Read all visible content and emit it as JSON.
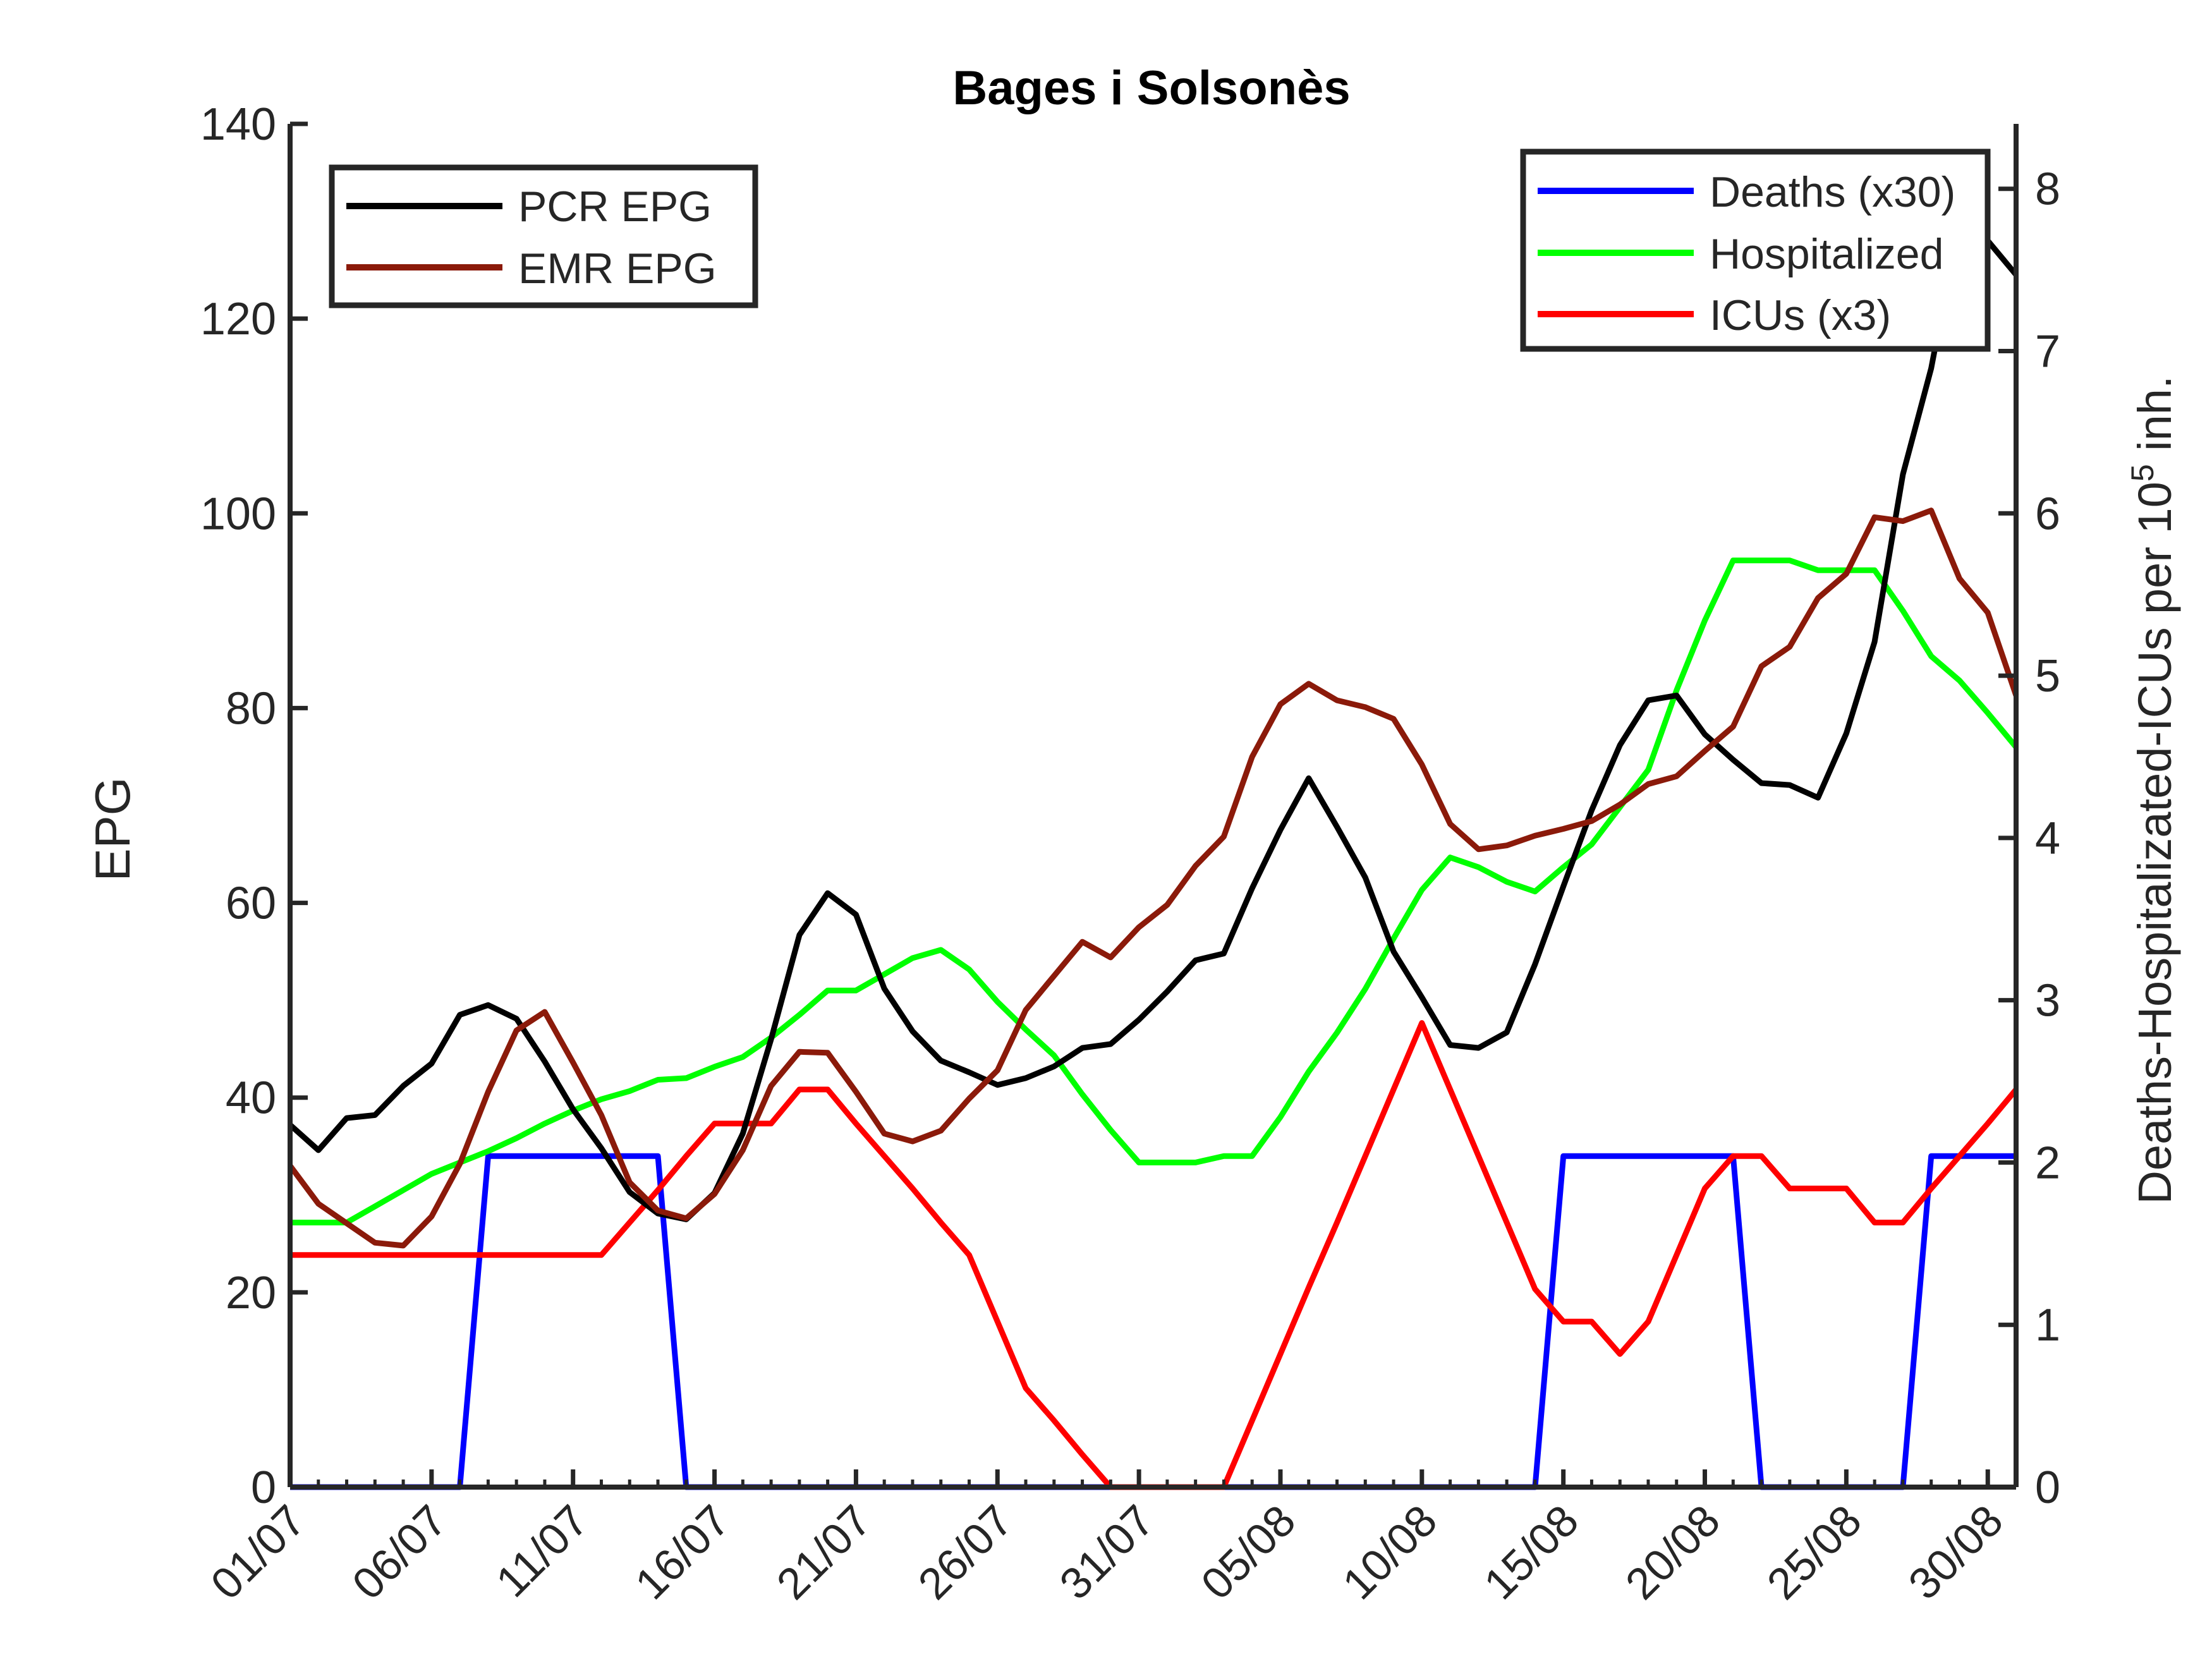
{
  "chart_data": {
    "type": "line",
    "title": "Bages i Solsonès",
    "x": [
      "01/07",
      "02/07",
      "03/07",
      "04/07",
      "05/07",
      "06/07",
      "07/07",
      "08/07",
      "09/07",
      "10/07",
      "11/07",
      "12/07",
      "13/07",
      "14/07",
      "15/07",
      "16/07",
      "17/07",
      "18/07",
      "19/07",
      "20/07",
      "21/07",
      "22/07",
      "23/07",
      "24/07",
      "25/07",
      "26/07",
      "27/07",
      "28/07",
      "29/07",
      "30/07",
      "31/07",
      "01/08",
      "02/08",
      "03/08",
      "04/08",
      "05/08",
      "06/08",
      "07/08",
      "08/08",
      "09/08",
      "10/08",
      "11/08",
      "12/08",
      "13/08",
      "14/08",
      "15/08",
      "16/08",
      "17/08",
      "18/08",
      "19/08",
      "20/08",
      "21/08",
      "22/08",
      "23/08",
      "24/08",
      "25/08",
      "26/08",
      "27/08",
      "28/08",
      "29/08",
      "30/08",
      "31/08"
    ],
    "xticks": [
      "01/07",
      "06/07",
      "11/07",
      "16/07",
      "21/07",
      "26/07",
      "31/07",
      "05/08",
      "10/08",
      "15/08",
      "20/08",
      "25/08",
      "30/08"
    ],
    "ylabel_left": "EPG",
    "ylabel_right_prefix": "Deaths-Hospitalizated-ICUs per 10",
    "ylabel_right_sup": "5",
    "ylabel_right_suffix": " inh.",
    "ylim_left": [
      0,
      140
    ],
    "yticks_left": [
      0,
      20,
      40,
      60,
      80,
      100,
      120,
      140
    ],
    "ylim_right": [
      0,
      8.4
    ],
    "yticks_right": [
      0,
      1,
      2,
      3,
      4,
      5,
      6,
      7,
      8
    ],
    "legend_left": [
      "PCR EPG",
      "EMR EPG"
    ],
    "legend_right": [
      "Deaths (x30)",
      "Hospitalized",
      "ICUs (x3)"
    ],
    "series_left": [
      {
        "name": "PCR EPG",
        "color": "#000000",
        "values": [
          37.2,
          34.6,
          37.9,
          38.2,
          41.2,
          43.5,
          48.5,
          49.5,
          48.1,
          43.7,
          38.8,
          34.8,
          30.3,
          28.1,
          27.5,
          30.2,
          36.3,
          46.0,
          56.7,
          61.0,
          58.8,
          51.2,
          46.8,
          43.8,
          42.6,
          41.3,
          42.0,
          43.2,
          45.1,
          45.5,
          48.0,
          50.9,
          54.1,
          54.8,
          61.5,
          67.5,
          72.8,
          67.8,
          62.6,
          55.0,
          50.3,
          45.4,
          45.1,
          46.7,
          53.7,
          61.7,
          69.5,
          76.2,
          80.8,
          81.3,
          77.3,
          74.7,
          72.3,
          72.1,
          70.8,
          77.4,
          86.8,
          104.0,
          114.9,
          130.1,
          128.0,
          124.5
        ]
      },
      {
        "name": "EMR EPG",
        "color": "#8B1A0A",
        "values": [
          33.0,
          29.1,
          27.1,
          25.1,
          24.8,
          27.8,
          33.2,
          40.6,
          46.9,
          48.8,
          43.6,
          38.2,
          31.3,
          28.4,
          27.6,
          30.1,
          34.6,
          41.2,
          44.7,
          44.6,
          40.6,
          36.3,
          35.5,
          36.6,
          39.9,
          42.8,
          49.0,
          52.5,
          56.0,
          54.4,
          57.5,
          59.8,
          63.8,
          66.8,
          75.0,
          80.4,
          82.5,
          80.8,
          80.1,
          78.9,
          74.2,
          68.1,
          65.5,
          65.9,
          66.9,
          67.6,
          68.4,
          70.1,
          72.2,
          73.0,
          75.6,
          78.1,
          84.3,
          86.3,
          91.3,
          93.8,
          99.6,
          99.2,
          100.3,
          93.3,
          89.8,
          81.3
        ]
      }
    ],
    "series_right": [
      {
        "name": "Deaths (x30)",
        "color": "#0000FF",
        "values": [
          0,
          0,
          0,
          0,
          0,
          0,
          0,
          2.04,
          2.04,
          2.04,
          2.04,
          2.04,
          2.04,
          2.04,
          0,
          0,
          0,
          0,
          0,
          0,
          0,
          0,
          0,
          0,
          0,
          0,
          0,
          0,
          0,
          0,
          0,
          0,
          0,
          0,
          0,
          0,
          0,
          0,
          0,
          0,
          0,
          0,
          0,
          0,
          0,
          2.04,
          2.04,
          2.04,
          2.04,
          2.04,
          2.04,
          2.04,
          0,
          0,
          0,
          0,
          0,
          0,
          2.04,
          2.04,
          2.04,
          2.04
        ]
      },
      {
        "name": "Hospitalized",
        "color": "#00FF00",
        "values": [
          1.63,
          1.63,
          1.63,
          1.73,
          1.83,
          1.93,
          2.0,
          2.07,
          2.15,
          2.24,
          2.32,
          2.39,
          2.44,
          2.51,
          2.52,
          2.59,
          2.65,
          2.77,
          2.91,
          3.06,
          3.06,
          3.16,
          3.26,
          3.31,
          3.19,
          2.99,
          2.82,
          2.66,
          2.42,
          2.2,
          2.0,
          2.0,
          2.0,
          2.04,
          2.04,
          2.28,
          2.56,
          2.8,
          3.07,
          3.38,
          3.68,
          3.88,
          3.82,
          3.73,
          3.67,
          3.82,
          3.96,
          4.19,
          4.42,
          4.91,
          5.34,
          5.71,
          5.71,
          5.71,
          5.65,
          5.65,
          5.65,
          5.4,
          5.12,
          4.97,
          4.77,
          4.56
        ]
      },
      {
        "name": "ICUs (x3)",
        "color": "#FF0000",
        "values": [
          1.43,
          1.43,
          1.43,
          1.43,
          1.43,
          1.43,
          1.43,
          1.43,
          1.43,
          1.43,
          1.43,
          1.43,
          1.63,
          1.83,
          2.04,
          2.24,
          2.24,
          2.24,
          2.45,
          2.45,
          2.24,
          2.04,
          1.84,
          1.63,
          1.43,
          1.02,
          0.61,
          0.41,
          0.2,
          0,
          0,
          0,
          0,
          0,
          0.41,
          0.82,
          1.23,
          1.63,
          2.04,
          2.45,
          2.86,
          2.45,
          2.04,
          1.63,
          1.22,
          1.02,
          1.02,
          0.82,
          1.02,
          1.43,
          1.84,
          2.04,
          2.04,
          1.84,
          1.84,
          1.84,
          1.63,
          1.63,
          1.84,
          2.04,
          2.24,
          2.45
        ]
      }
    ],
    "grid": false,
    "legend_left_placement": "top-left",
    "legend_right_placement": "top-right"
  }
}
